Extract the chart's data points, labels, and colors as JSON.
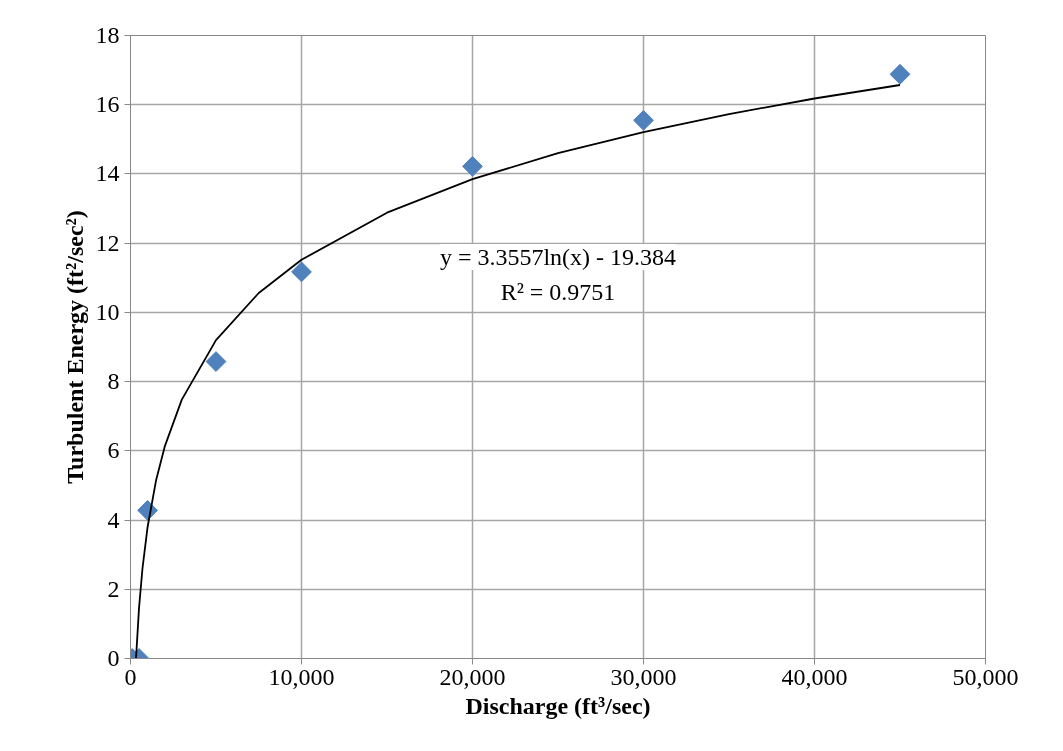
{
  "chart_data": {
    "type": "scatter",
    "xlabel": "Discharge (ft³/sec)",
    "ylabel": "Turbulent Energy (ft²/sec²)",
    "series": [
      {
        "color": "#4f81bd",
        "marker": "diamond",
        "x": [
          100,
          500,
          1000,
          5000,
          10000,
          20000,
          30000,
          45000
        ],
        "values": [
          0,
          0,
          4.28,
          8.58,
          11.17,
          14.22,
          15.55,
          16.88
        ]
      },
      {
        "type": "line",
        "color": "#000000",
        "marker": "none",
        "line_style": "solid",
        "x": [
          322,
          500,
          700,
          1000,
          1500,
          2000,
          3000,
          5000,
          7500,
          10000,
          15000,
          20000,
          25000,
          30000,
          35000,
          40000,
          45000
        ],
        "values": [
          0,
          1.47,
          2.6,
          3.8,
          5.16,
          6.12,
          7.48,
          9.2,
          10.56,
          11.52,
          12.88,
          13.85,
          14.6,
          15.21,
          15.73,
          16.18,
          16.57
        ]
      }
    ],
    "annotations": [
      "y = 3.3557ln(x) - 19.384",
      "R² = 0.9751"
    ],
    "xlim": [
      0,
      50000
    ],
    "ylim": [
      0,
      18
    ],
    "xticks": [
      0,
      {
        "value": 10000,
        "label": "10,000"
      },
      {
        "value": 20000,
        "label": "20,000"
      },
      {
        "value": 30000,
        "label": "30,000"
      },
      {
        "value": 40000,
        "label": "40,000"
      },
      {
        "value": 50000,
        "label": "50,000"
      }
    ],
    "yticks": [
      0,
      2,
      4,
      6,
      8,
      10,
      12,
      14,
      16,
      18
    ],
    "grid": true
  }
}
